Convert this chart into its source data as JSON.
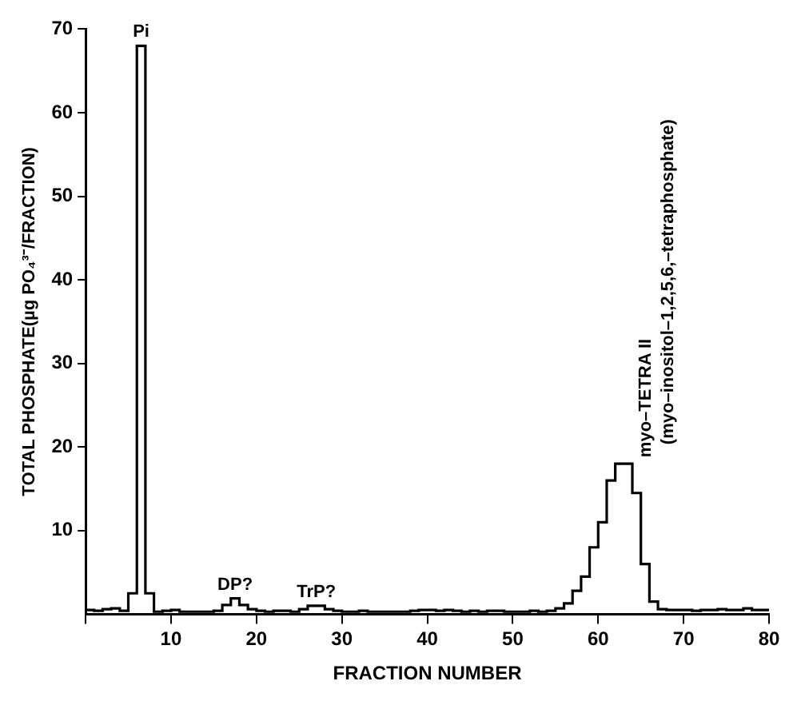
{
  "chart_data": {
    "type": "histogram",
    "xlabel": "FRACTION NUMBER",
    "ylabel": "TOTAL PHOSPHATE(µg PO₄³⁻/FRACTION)",
    "bins": [
      0,
      1,
      2,
      3,
      4,
      5,
      6,
      7,
      8,
      9,
      10,
      11,
      12,
      13,
      14,
      15,
      16,
      17,
      18,
      19,
      20,
      21,
      22,
      23,
      24,
      25,
      26,
      27,
      28,
      29,
      30,
      31,
      32,
      33,
      34,
      35,
      36,
      37,
      38,
      39,
      40,
      41,
      42,
      43,
      44,
      45,
      46,
      47,
      48,
      49,
      50,
      51,
      52,
      53,
      54,
      55,
      56,
      57,
      58,
      59,
      60,
      61,
      62,
      63,
      64,
      65,
      66,
      67,
      68,
      69,
      70,
      71,
      72,
      73,
      74,
      75,
      76,
      77,
      78,
      79,
      80
    ],
    "values": [
      0.5,
      0.4,
      0.6,
      0.7,
      0.4,
      2.5,
      68,
      2.5,
      0.3,
      0.4,
      0.5,
      0.3,
      0.3,
      0.3,
      0.3,
      0.4,
      1.1,
      1.9,
      1.1,
      0.6,
      0.4,
      0.3,
      0.4,
      0.4,
      0.3,
      0.6,
      1,
      1,
      0.6,
      0.4,
      0.3,
      0.3,
      0.4,
      0.3,
      0.3,
      0.3,
      0.3,
      0.3,
      0.4,
      0.5,
      0.5,
      0.4,
      0.5,
      0.4,
      0.3,
      0.4,
      0.3,
      0.4,
      0.4,
      0.3,
      0.3,
      0.3,
      0.4,
      0.3,
      0.4,
      0.7,
      1.3,
      2.8,
      4.5,
      8,
      11,
      16,
      18,
      18,
      14.5,
      6,
      1.5,
      0.6,
      0.5,
      0.5,
      0.5,
      0.4,
      0.5,
      0.5,
      0.6,
      0.5,
      0.5,
      0.7,
      0.5,
      0.5
    ],
    "color": "#000000",
    "xlim": [
      0,
      80
    ],
    "xticks": [
      {
        "value": 0,
        "label": null
      },
      10,
      20,
      30,
      40,
      50,
      60,
      70,
      80
    ],
    "ylim": [
      0,
      70
    ],
    "yticks": [
      10,
      20,
      30,
      40,
      50,
      60,
      70
    ],
    "grid": false,
    "annotations": [
      {
        "text": "Pi",
        "x": 6.5,
        "y": 68
      },
      {
        "text": "DP?",
        "x": 17.5,
        "y": 1.9
      },
      {
        "text": "TrP?",
        "x": 27,
        "y": 1
      },
      {
        "text": "myo–TETRA II",
        "x": 63,
        "y": 18
      },
      "(myo–inositol–1,2,5,6,–tetraphosphate)"
    ]
  }
}
